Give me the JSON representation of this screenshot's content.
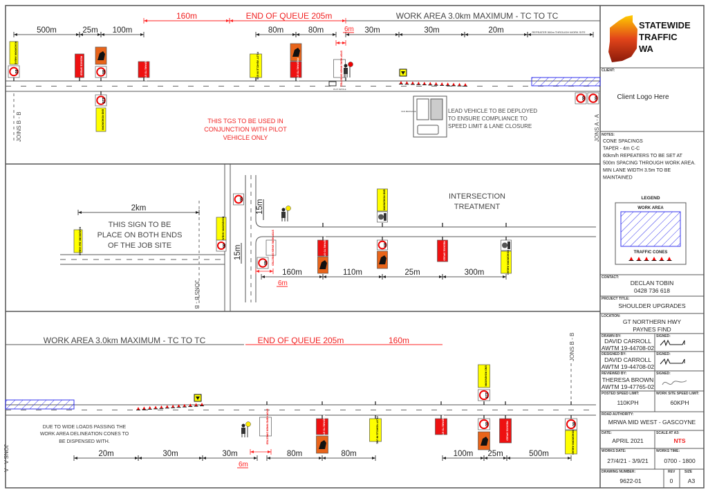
{
  "colors": {
    "sign_yellow": "#ffff00",
    "sign_red": "#ee1111",
    "sign_orange": "#e8641a",
    "work_area_hatch": "#3333ee",
    "dimension_red": "#ff2020",
    "logo_gradient": [
      "#ffcc00",
      "#d42a10",
      "#8a1a0a"
    ]
  },
  "signs": {
    "roadwork_ahead": "ROADWORK AHEAD",
    "reduce_speed": "REDUCE SPEED",
    "prepare_to_stop": "PREPARE TO STOP",
    "pilot_vehicle": "PILOT VEHICLE IN USE",
    "end_roadwork": "END ROADWORK",
    "stop_here": "STOP HERE WHEN DIRECTED",
    "roadwork_2km": "ROADWORK 2km AHEAD",
    "speed_80": "80",
    "speed_110": "110",
    "speed_60": "60",
    "pilot_vehicle_label": "PILOT VEHICLE",
    "van_label": "VAN MESSAGE"
  },
  "top": {
    "work_area_title": "WORK AREA 3.0km MAXIMUM - TC TO TC",
    "queue_dims": [
      "160m",
      "END OF QUEUE 205m"
    ],
    "dims": [
      "500m",
      "25m",
      "100m",
      "80m",
      "80m",
      "30m",
      "30m",
      "20m"
    ],
    "six_m": "6m",
    "repeater": "REPEATER 500m THROUGH WORK SITE",
    "joins_left": "JOINS B - B",
    "joins_right": "JONS A - A",
    "pilot_note": [
      "THIS TGS TO BE USED IN",
      "CONJUNCTION WITH PILOT",
      "VEHICLE ONLY"
    ],
    "lead_note": [
      "LEAD VEHICLE TO BE DEPLOYED",
      "TO ENSURE COMPLIANCE TO",
      "SPEED LIMIT & LANE CLOSURE"
    ]
  },
  "middle": {
    "dim_2km": "2km",
    "note": [
      "THIS SIGN TO BE",
      "PLACE ON BOTH ENDS",
      "OF THE JOB SITE"
    ],
    "joins": "JONS B - B",
    "dim_15m": "15m",
    "title": [
      "INTERSECTION",
      "TREATMENT"
    ],
    "dims": [
      "160m",
      "110m",
      "25m",
      "300m"
    ],
    "six_m": "6m"
  },
  "bottom": {
    "work_area_title": "WORK AREA 3.0km MAXIMUM - TC TO TC",
    "queue_dims": [
      "END OF QUEUE 205m",
      "160m"
    ],
    "note": [
      "DUE TO WIDE LOADS PASSING THE",
      "WORK AREA DELINEATION CONES TO",
      "BE DISPENSED WITH."
    ],
    "dims": [
      "20m",
      "30m",
      "30m",
      "80m",
      "80m",
      "100m",
      "25m",
      "500m"
    ],
    "six_m": "6m",
    "joins_left": "JONS A - A",
    "joins_right": "JONS B - B"
  },
  "title_block": {
    "company": [
      "STATEWIDE",
      "TRAFFIC",
      "WA"
    ],
    "client_label": "CLIENT:",
    "client_value": "Client Logo Here",
    "notes_label": "NOTES:",
    "notes": [
      "CONE SPACINGS",
      "TAPER - 4m C-C",
      "60km/h REPEATERS TO BE SET AT",
      "500m SPACING THROUGH WORK AREA.",
      "MIN LANE WIDTH 3.5m TO BE",
      "MAINTAINED"
    ],
    "legend_title": "LEGEND",
    "legend_work_area": "WORK AREA",
    "legend_cones": "TRAFFIC CONES",
    "contact_label": "CONTACT:",
    "contact": [
      "DECLAN TOBIN",
      "0428 736 618"
    ],
    "project_label": "PROJECT TITLE:",
    "project": "SHOULDER UPGRADES",
    "location_label": "LOCATION:",
    "location": [
      "GT NORTHERN HWY",
      "PAYNES FIND"
    ],
    "drawn_label": "DRAWN BY:",
    "drawn": [
      "DAVID CARROLL",
      "AWTM 19-44708-02"
    ],
    "designed_label": "DESIGNED BY:",
    "designed": [
      "DAVID CARROLL",
      "AWTM 19-44708-02"
    ],
    "reviewed_label": "REVIEWED BY:",
    "reviewed": [
      "THERESA BROWN",
      "AWTM 19-47765-02"
    ],
    "signed_label": "SIGNED:",
    "posted_speed_label": "POSTED SPEED LIMIT:",
    "posted_speed": "110KPH",
    "site_speed_label": "WORK SITE SPEED LIMIT:",
    "site_speed": "60KPH",
    "authority_label": "ROAD AUTHORITY:",
    "authority": "MRWA  MID WEST - GASCOYNE",
    "date_label": "DATE:",
    "date": "APRIL 2021",
    "scale_label": "SCALE AT A3:",
    "scale": "NTS",
    "works_date_label": "WORKS DATE:",
    "works_date": "27/4/21 - 3/9/21",
    "works_time_label": "WORKS TIME:",
    "works_time": "0700 - 1800",
    "drawing_label": "DRAWING NUMBER:",
    "drawing": "9622-01",
    "rev_label": "REV",
    "rev": "0",
    "size_label": "SIZE",
    "size": "A3"
  }
}
